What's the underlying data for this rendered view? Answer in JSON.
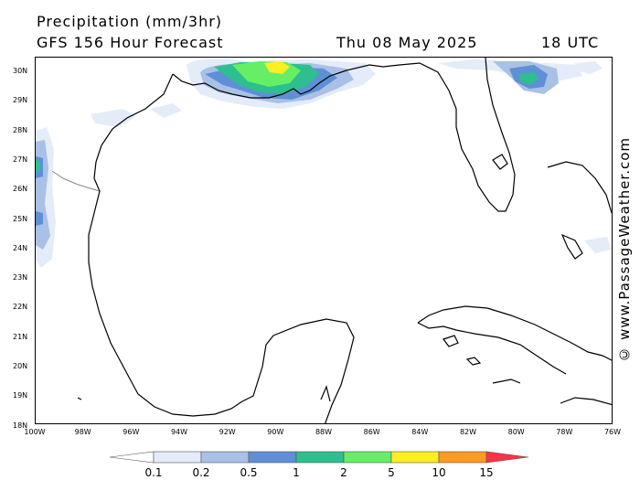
{
  "header": {
    "title": "Precipitation (mm/3hr)",
    "subtitle": "GFS 156 Hour Forecast",
    "date": "Thu 08 May 2025",
    "time": "18 UTC"
  },
  "credit": "© www.PassageWeather.com",
  "axes": {
    "lat_labels": [
      "30N",
      "29N",
      "28N",
      "27N",
      "26N",
      "25N",
      "24N",
      "23N",
      "22N",
      "21N",
      "20N",
      "19N",
      "18N"
    ],
    "lon_labels": [
      "100W",
      "98W",
      "96W",
      "94W",
      "92W",
      "90W",
      "88W",
      "86W",
      "84W",
      "82W",
      "80W",
      "78W",
      "76W"
    ]
  },
  "legend": {
    "labels": [
      "0.1",
      "0.2",
      "0.5",
      "1",
      "2",
      "5",
      "10",
      "15"
    ],
    "colors": [
      "#ffffff",
      "#e3ecf8",
      "#a9c1e6",
      "#5f8fd6",
      "#2ebf8f",
      "#66ee66",
      "#ffee22",
      "#ff9a22",
      "#ff3344"
    ]
  },
  "colors": {
    "coast": "#000000",
    "border": "#888888"
  }
}
